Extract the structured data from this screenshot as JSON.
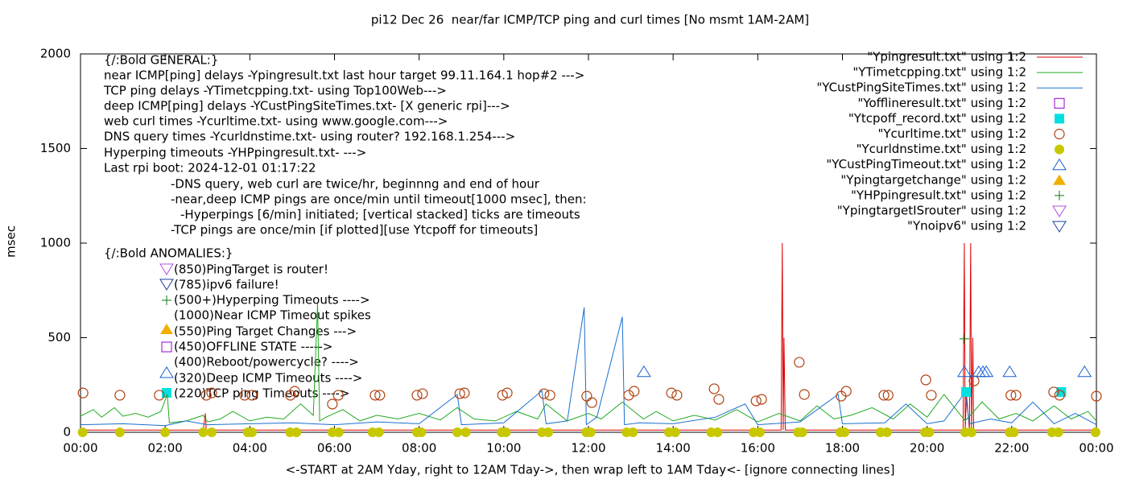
{
  "chart_data": {
    "type": "line",
    "title": "pi12 Dec 26  near/far ICMP/TCP ping and curl times [No msmt 1AM-2AM]",
    "y_label": "msec",
    "x_label": "<-START at 2AM Yday, right to 12AM Tday->, then wrap left to 1AM Tday<- [ignore connecting lines]",
    "xlim": [
      0,
      24
    ],
    "xticks": [
      {
        "value": 0,
        "label": "00:00"
      },
      {
        "value": 2,
        "label": "02:00"
      },
      {
        "value": 4,
        "label": "04:00"
      },
      {
        "value": 6,
        "label": "06:00"
      },
      {
        "value": 8,
        "label": "08:00"
      },
      {
        "value": 10,
        "label": "10:00"
      },
      {
        "value": 12,
        "label": "12:00"
      },
      {
        "value": 14,
        "label": "14:00"
      },
      {
        "value": 16,
        "label": "16:00"
      },
      {
        "value": 18,
        "label": "18:00"
      },
      {
        "value": 20,
        "label": "20:00"
      },
      {
        "value": 22,
        "label": "22:00"
      },
      {
        "value": 24,
        "label": "00:00"
      }
    ],
    "ylim": [
      0,
      2000
    ],
    "yticks": [
      0,
      500,
      1000,
      1500,
      2000
    ],
    "legend": "top-right",
    "annotations": [
      "{/:Bold GENERAL:}",
      "near ICMP[ping] delays -Ypingresult.txt last hour target 99.11.164.1 hop#2 --->",
      "TCP ping delays -YTimetcpping.txt- using Top100Web--->",
      "deep ICMP[ping] delays -YCustPingSiteTimes.txt- [X generic rpi]--->",
      "web curl times -Ycurltime.txt- using www.google.com--->",
      "DNS query times -Ycurldnstime.txt- using router? 192.168.1.254--->",
      "Hyperping timeouts -YHPpingresult.txt- --->",
      "Last rpi boot: 2024-12-01 01:17:22",
      "-DNS query, web curl are twice/hr, beginnng and end of hour",
      "-near,deep ICMP pings are once/min until timeout[1000 msec], then:",
      "-Hyperpings [6/min] initiated; [vertical stacked] ticks are timeouts",
      "-TCP pings are once/min [if plotted][use Ytcpoff for timeouts]",
      "{/:Bold ANOMALIES:}",
      "(850)PingTarget is router!",
      "(785)ipv6 failure!",
      "(500+)Hyperping Timeouts ---->",
      "(1000)Near ICMP Timeout spikes",
      "(550)Ping Target Changes --->",
      "(450)OFFLINE STATE ----->",
      "(400)Reboot/powercycle? ---->",
      "(320)Deep ICMP Timeouts ---->",
      "(220)TCP ping Timeouts ---->"
    ],
    "series": [
      {
        "name": "\"Ypingresult.txt\" using 1:2",
        "color": "#dd0000",
        "style": "line",
        "x": [
          0,
          2.9,
          2.95,
          2.97,
          3.0,
          16.55,
          16.58,
          16.6,
          16.62,
          16.65,
          20.85,
          20.88,
          20.9,
          20.93,
          21.0,
          21.03,
          21.05,
          21.08,
          21.1,
          21.13,
          21.2,
          24
        ],
        "values": [
          12,
          12,
          100,
          12,
          12,
          12,
          1000,
          12,
          500,
          12,
          12,
          1000,
          12,
          200,
          12,
          1000,
          12,
          500,
          12,
          12,
          12,
          12
        ]
      },
      {
        "name": "\"YTimetcpping.txt\" using 1:2",
        "color": "#22aa22",
        "style": "line",
        "x": [
          0,
          0.3,
          0.5,
          0.8,
          1.0,
          1.3,
          1.6,
          1.9,
          2.05,
          2.1,
          2.5,
          2.9,
          3.0,
          3.3,
          3.6,
          4.0,
          4.4,
          4.8,
          5.2,
          5.5,
          5.6,
          5.65,
          5.8,
          6.2,
          6.6,
          7.0,
          7.5,
          8.0,
          8.5,
          8.9,
          9.3,
          9.8,
          10.3,
          10.8,
          11.0,
          11.5,
          12.0,
          12.3,
          12.8,
          13.3,
          13.6,
          14.0,
          14.5,
          15.0,
          15.5,
          16.0,
          16.5,
          17.0,
          17.4,
          17.8,
          18.2,
          18.7,
          19.2,
          19.6,
          20.0,
          20.4,
          20.9,
          21.3,
          21.7,
          22.1,
          22.5,
          23.0,
          23.4,
          23.8,
          24
        ],
        "values": [
          85,
          120,
          80,
          130,
          85,
          100,
          80,
          110,
          200,
          50,
          60,
          90,
          55,
          70,
          110,
          60,
          80,
          70,
          150,
          90,
          680,
          60,
          80,
          120,
          60,
          90,
          70,
          100,
          65,
          130,
          70,
          60,
          110,
          70,
          150,
          60,
          100,
          70,
          160,
          70,
          110,
          60,
          90,
          65,
          120,
          55,
          100,
          60,
          140,
          70,
          90,
          130,
          70,
          150,
          80,
          200,
          60,
          160,
          70,
          100,
          60,
          140,
          70,
          110,
          60
        ]
      },
      {
        "name": "\"YCustPingSiteTimes.txt\" using 1:2",
        "color": "#1a6fd0",
        "style": "line",
        "x": [
          0,
          1,
          2,
          2.5,
          3,
          4,
          5,
          6,
          7,
          8,
          8.9,
          9,
          10,
          10.9,
          11,
          11.5,
          11.9,
          11.95,
          12.2,
          12.8,
          12.85,
          13.2,
          14,
          15,
          15.7,
          16,
          17,
          17.9,
          18,
          19,
          19.5,
          20,
          20.4,
          20.9,
          21,
          21.5,
          22,
          22.5,
          23,
          23.5,
          24
        ],
        "values": [
          40,
          45,
          35,
          60,
          40,
          45,
          50,
          40,
          55,
          45,
          200,
          40,
          50,
          220,
          45,
          60,
          660,
          40,
          80,
          610,
          40,
          50,
          45,
          80,
          150,
          40,
          55,
          200,
          45,
          50,
          150,
          45,
          60,
          210,
          45,
          70,
          50,
          160,
          45,
          100,
          40
        ]
      },
      {
        "name": "\"Yofflineresult.txt\" using 1:2",
        "color": "#9400d3",
        "style": "open-square",
        "x": [],
        "values": []
      },
      {
        "name": "\"Ytcpoff_record.txt\" using 1:2",
        "color": "#00e0e0",
        "style": "filled-square",
        "x": [
          20.92,
          23.17
        ],
        "values": [
          213,
          213
        ]
      },
      {
        "name": "\"Ycurltime.txt\" using 1:2",
        "color": "#b04010",
        "style": "open-circle",
        "x": [
          0.06,
          0.93,
          1.86,
          2.97,
          3.1,
          3.88,
          4.05,
          4.96,
          5.06,
          5.95,
          6.09,
          6.96,
          7.07,
          7.95,
          8.08,
          8.96,
          9.07,
          9.97,
          10.08,
          10.95,
          11.09,
          11.96,
          12.08,
          12.95,
          13.08,
          13.96,
          14.09,
          14.97,
          15.08,
          15.96,
          16.09,
          16.98,
          17.1,
          17.97,
          18.09,
          18.98,
          19.08,
          19.97,
          20.1,
          21.11,
          21.98,
          22.1,
          22.99,
          23.13,
          24.0
        ],
        "values": [
          208,
          196,
          196,
          196,
          208,
          196,
          196,
          196,
          217,
          149,
          196,
          196,
          196,
          196,
          204,
          204,
          208,
          196,
          208,
          204,
          196,
          191,
          157,
          196,
          217,
          208,
          196,
          230,
          174,
          166,
          174,
          370,
          200,
          191,
          217,
          196,
          196,
          277,
          196,
          272,
          196,
          196,
          213,
          196,
          191
        ]
      },
      {
        "name": "\"Ycurldnstime.txt\" using 1:2",
        "color": "#c8c800",
        "style": "filled-circle",
        "x": [
          0.05,
          0.93,
          2.0,
          2.9,
          3.1,
          3.95,
          4.05,
          4.95,
          5.1,
          5.95,
          6.1,
          6.9,
          7.05,
          7.95,
          8.05,
          8.9,
          9.1,
          9.95,
          10.05,
          10.9,
          11.05,
          11.95,
          12.05,
          12.9,
          13.05,
          13.9,
          14.05,
          14.9,
          15.05,
          15.9,
          16.05,
          16.95,
          17.05,
          17.95,
          18.05,
          18.9,
          19.05,
          19.95,
          20.05,
          20.9,
          21.05,
          21.95,
          22.05,
          22.95,
          23.1,
          23.98
        ],
        "values": [
          0,
          0,
          0,
          0,
          0,
          0,
          0,
          0,
          0,
          0,
          0,
          0,
          0,
          0,
          0,
          0,
          0,
          0,
          0,
          0,
          0,
          0,
          0,
          0,
          0,
          0,
          0,
          0,
          0,
          0,
          0,
          0,
          0,
          0,
          0,
          0,
          0,
          0,
          0,
          0,
          0,
          0,
          0,
          0,
          0,
          0
        ]
      },
      {
        "name": "\"YCustPingTimeout.txt\" using 1:2",
        "color": "#1a5fd0",
        "style": "open-triangle",
        "x": [
          13.31,
          20.88,
          21.22,
          21.32,
          21.4,
          21.95,
          23.72
        ],
        "values": [
          320,
          320,
          320,
          320,
          320,
          320,
          320
        ]
      },
      {
        "name": "\"Ypingtargetchange\" using 1:2",
        "color": "#f0b000",
        "style": "filled-triangle",
        "x": [],
        "values": []
      },
      {
        "name": "\"YHPpingresult.txt\" using 1:2",
        "color": "#117711",
        "style": "plus",
        "x": [
          20.88
        ],
        "values": [
          494
        ]
      },
      {
        "name": "\"YpingtargetISrouter\" using 1:2",
        "color": "#b050e0",
        "style": "open-triangle-down",
        "x": [],
        "values": []
      },
      {
        "name": "\"Ynoipv6\" using 1:2",
        "color": "#1a3fa0",
        "style": "open-triangle-down",
        "x": [],
        "values": []
      }
    ]
  }
}
